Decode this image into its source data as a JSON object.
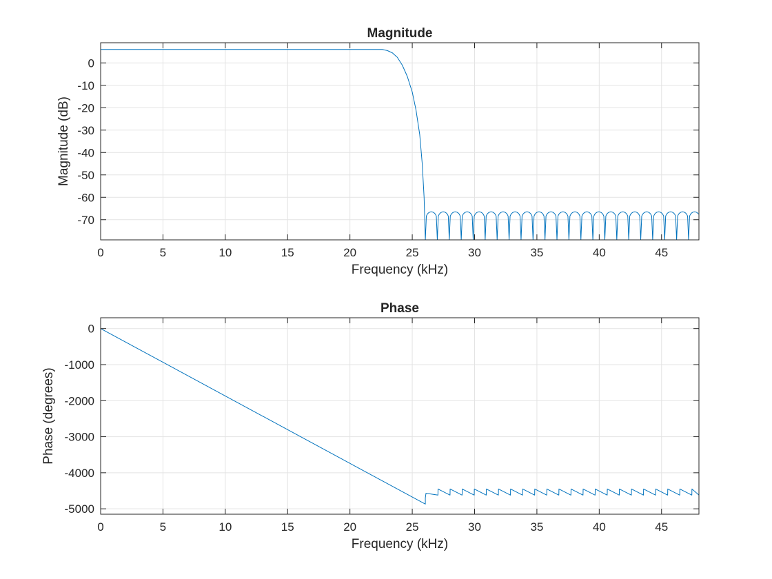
{
  "chart_data": [
    {
      "type": "line",
      "title": "Magnitude",
      "xlabel": "Frequency (kHz)",
      "ylabel": "Magnitude (dB)",
      "xlim": [
        0,
        48
      ],
      "ylim": [
        -79,
        9
      ],
      "xticks": [
        0,
        5,
        10,
        15,
        20,
        25,
        30,
        35,
        40,
        45
      ],
      "yticks": [
        0,
        -10,
        -20,
        -30,
        -40,
        -50,
        -60,
        -70
      ],
      "grid": true,
      "color": "#0072BD",
      "series": [
        {
          "x": [
            0,
            5,
            10,
            15,
            20,
            22,
            22.6,
            23.0,
            23.4,
            23.8,
            24.2,
            24.6,
            25.0,
            25.3,
            25.6,
            25.8,
            25.95,
            26.05
          ],
          "y": [
            6,
            6,
            6,
            6,
            6,
            6,
            6,
            5.5,
            4.5,
            2.5,
            -1,
            -6,
            -13,
            -21,
            -32,
            -45,
            -60,
            -79
          ]
        }
      ],
      "stopband": {
        "start_khz": 26.05,
        "end_khz": 48,
        "lobe_width_khz": 0.96,
        "peak_db": -66.5,
        "null_db": -79
      }
    },
    {
      "type": "line",
      "title": "Phase",
      "xlabel": "Frequency (kHz)",
      "ylabel": "Phase (degrees)",
      "xlim": [
        0,
        48
      ],
      "ylim": [
        -5150,
        300
      ],
      "xticks": [
        0,
        5,
        10,
        15,
        20,
        25,
        30,
        35,
        40,
        45
      ],
      "yticks": [
        0,
        -1000,
        -2000,
        -3000,
        -4000,
        -5000
      ],
      "grid": true,
      "color": "#0072BD",
      "series": [
        {
          "x": [
            0,
            26.05
          ],
          "y": [
            0,
            -4870
          ]
        }
      ],
      "stopband": {
        "start_khz": 26.05,
        "end_khz": 48,
        "lobe_width_khz": 0.96,
        "sawtooth_high": -4450,
        "sawtooth_low": -4620
      }
    }
  ]
}
